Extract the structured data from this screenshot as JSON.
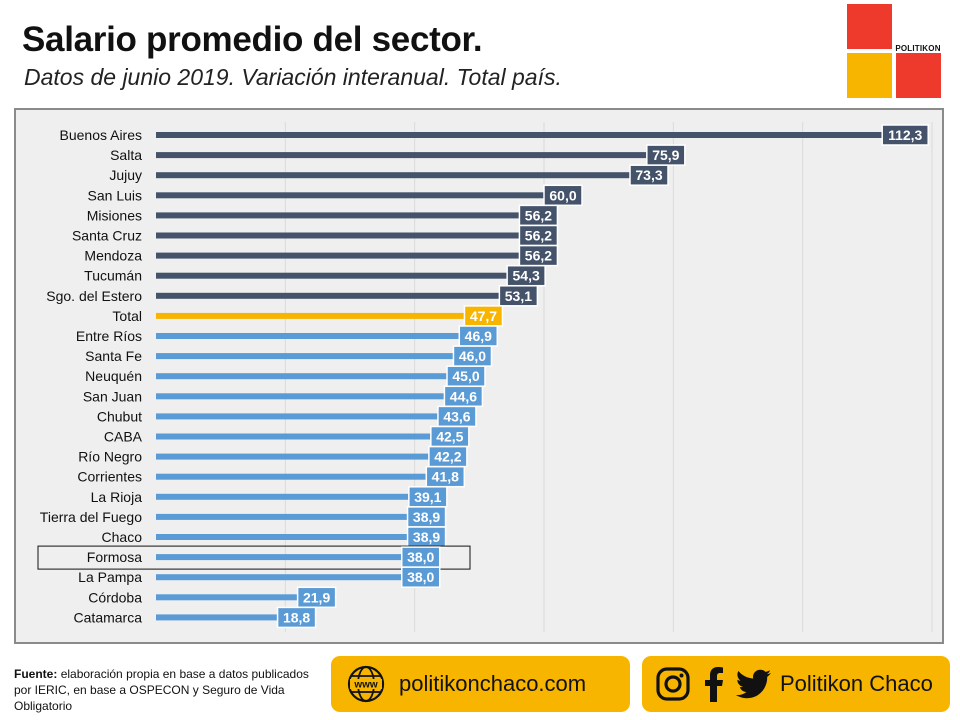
{
  "header": {
    "title": "Salario promedio del sector.",
    "subtitle": "Datos de junio 2019. Variación interanual. Total país."
  },
  "logo": {
    "text": "POLITIKON"
  },
  "colors": {
    "provinces_above": "#44536a",
    "total": "#f7b500",
    "provinces_below": "#5b9bd5",
    "panel_bg": "#efefef",
    "accent_red": "#ee3a2d",
    "accent_yellow": "#f7b500"
  },
  "chart_data": {
    "type": "bar",
    "orientation": "horizontal",
    "categories": [
      "Buenos Aires",
      "Salta",
      "Jujuy",
      "San Luis",
      "Misiones",
      "Santa Cruz",
      "Mendoza",
      "Tucumán",
      "Sgo. del Estero",
      "Total",
      "Entre Ríos",
      "Santa Fe",
      "Neuquén",
      "San Juan",
      "Chubut",
      "CABA",
      "Río Negro",
      "Corrientes",
      "La Rioja",
      "Tierra del Fuego",
      "Chaco",
      "Formosa",
      "La Pampa",
      "Córdoba",
      "Catamarca"
    ],
    "values": [
      112.3,
      75.9,
      73.3,
      60.0,
      56.2,
      56.2,
      56.2,
      54.3,
      53.1,
      47.7,
      46.9,
      46.0,
      45.0,
      44.6,
      43.6,
      42.5,
      42.2,
      41.8,
      39.1,
      38.9,
      38.9,
      38.0,
      38.0,
      21.9,
      18.8
    ],
    "labels": [
      "112,3",
      "75,9",
      "73,3",
      "60,0",
      "56,2",
      "56,2",
      "56,2",
      "54,3",
      "53,1",
      "47,7",
      "46,9",
      "46,0",
      "45,0",
      "44,6",
      "43,6",
      "42,5",
      "42,2",
      "41,8",
      "39,1",
      "38,9",
      "38,9",
      "38,0",
      "38,0",
      "21,9",
      "18,8"
    ],
    "highlighted_category": "Formosa",
    "xlim": [
      0,
      120
    ],
    "grid": true,
    "xlabel": "",
    "ylabel": ""
  },
  "footer": {
    "source_label": "Fuente:",
    "source_text": "elaboración propia en base a datos publicados por IERIC, en base a OSPECON y Seguro de Vida Obligatorio",
    "website": "politikonchaco.com",
    "www_icon_text": "www",
    "social_name": "Politikon Chaco",
    "icons": [
      "globe-icon",
      "instagram-icon",
      "facebook-icon",
      "twitter-icon"
    ]
  }
}
